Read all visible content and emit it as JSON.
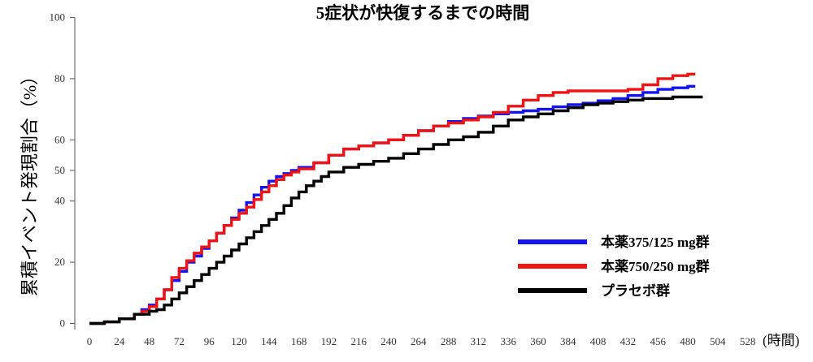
{
  "chart_data": {
    "type": "line",
    "title": "5症状が快復するまでの時間",
    "ylabel": "累積イベント発現割合（%）",
    "xlabel": "(時間)",
    "xlim": [
      0,
      540
    ],
    "ylim": [
      -2,
      102
    ],
    "x_ticks": [
      0,
      24,
      48,
      72,
      96,
      120,
      144,
      168,
      192,
      216,
      240,
      264,
      288,
      312,
      336,
      360,
      384,
      408,
      432,
      456,
      480,
      504,
      528
    ],
    "y_ticks": [
      0,
      20,
      40,
      50,
      60,
      80,
      100
    ],
    "grid": false,
    "legend_position": "bottom-right",
    "series": [
      {
        "name": "本薬375/125 mg群",
        "color": "#1414ee",
        "points": [
          [
            0,
            0
          ],
          [
            12,
            0.5
          ],
          [
            24,
            1.5
          ],
          [
            36,
            3
          ],
          [
            42,
            4.5
          ],
          [
            48,
            6
          ],
          [
            54,
            8
          ],
          [
            60,
            11
          ],
          [
            66,
            14
          ],
          [
            72,
            17
          ],
          [
            78,
            20
          ],
          [
            84,
            22
          ],
          [
            90,
            24.5
          ],
          [
            96,
            27
          ],
          [
            102,
            29.5
          ],
          [
            108,
            32
          ],
          [
            114,
            34.5
          ],
          [
            120,
            37
          ],
          [
            126,
            39.5
          ],
          [
            132,
            42
          ],
          [
            138,
            44.5
          ],
          [
            144,
            46.5
          ],
          [
            150,
            48
          ],
          [
            156,
            49
          ],
          [
            162,
            50
          ],
          [
            168,
            51
          ],
          [
            180,
            52.5
          ],
          [
            192,
            55
          ],
          [
            204,
            57
          ],
          [
            216,
            58
          ],
          [
            228,
            59
          ],
          [
            240,
            60
          ],
          [
            252,
            61.5
          ],
          [
            264,
            63
          ],
          [
            276,
            64.5
          ],
          [
            288,
            66
          ],
          [
            300,
            67
          ],
          [
            312,
            67.8
          ],
          [
            324,
            68.5
          ],
          [
            336,
            69
          ],
          [
            348,
            69.5
          ],
          [
            360,
            70
          ],
          [
            372,
            70.8
          ],
          [
            384,
            71.5
          ],
          [
            396,
            72
          ],
          [
            408,
            72.8
          ],
          [
            420,
            73.5
          ],
          [
            432,
            74.5
          ],
          [
            444,
            75.5
          ],
          [
            456,
            76.5
          ],
          [
            468,
            77
          ],
          [
            480,
            77.5
          ],
          [
            486,
            77.5
          ]
        ]
      },
      {
        "name": "本薬750/250 mg群",
        "color": "#ee1414",
        "points": [
          [
            0,
            0
          ],
          [
            12,
            0.5
          ],
          [
            24,
            1.5
          ],
          [
            36,
            3
          ],
          [
            42,
            4
          ],
          [
            48,
            5.5
          ],
          [
            54,
            8
          ],
          [
            60,
            11
          ],
          [
            66,
            15
          ],
          [
            72,
            18
          ],
          [
            78,
            20.5
          ],
          [
            84,
            23
          ],
          [
            90,
            25
          ],
          [
            96,
            27
          ],
          [
            102,
            29.5
          ],
          [
            108,
            32
          ],
          [
            114,
            34
          ],
          [
            120,
            36
          ],
          [
            126,
            38
          ],
          [
            132,
            40.5
          ],
          [
            138,
            43
          ],
          [
            144,
            45
          ],
          [
            150,
            47
          ],
          [
            156,
            48.5
          ],
          [
            162,
            49.5
          ],
          [
            168,
            50.5
          ],
          [
            180,
            52.5
          ],
          [
            192,
            55
          ],
          [
            204,
            57
          ],
          [
            216,
            58
          ],
          [
            228,
            59
          ],
          [
            240,
            60
          ],
          [
            252,
            61.5
          ],
          [
            264,
            63
          ],
          [
            276,
            64.5
          ],
          [
            288,
            65.5
          ],
          [
            300,
            66.5
          ],
          [
            312,
            67.5
          ],
          [
            324,
            69
          ],
          [
            336,
            71
          ],
          [
            348,
            73
          ],
          [
            360,
            74.5
          ],
          [
            372,
            75.5
          ],
          [
            384,
            76
          ],
          [
            396,
            76
          ],
          [
            408,
            76
          ],
          [
            420,
            76
          ],
          [
            432,
            76.5
          ],
          [
            444,
            78
          ],
          [
            456,
            80
          ],
          [
            468,
            81
          ],
          [
            480,
            81.5
          ],
          [
            486,
            81.5
          ]
        ]
      },
      {
        "name": "プラセボ群",
        "color": "#000000",
        "points": [
          [
            0,
            0
          ],
          [
            12,
            0.5
          ],
          [
            24,
            1.5
          ],
          [
            36,
            3
          ],
          [
            48,
            4
          ],
          [
            54,
            4.5
          ],
          [
            60,
            6
          ],
          [
            66,
            8
          ],
          [
            72,
            10
          ],
          [
            78,
            12
          ],
          [
            84,
            14
          ],
          [
            90,
            16
          ],
          [
            96,
            18
          ],
          [
            102,
            20
          ],
          [
            108,
            22
          ],
          [
            114,
            24
          ],
          [
            120,
            26
          ],
          [
            126,
            28
          ],
          [
            132,
            30
          ],
          [
            138,
            32
          ],
          [
            144,
            34
          ],
          [
            150,
            36
          ],
          [
            156,
            38.5
          ],
          [
            162,
            41
          ],
          [
            168,
            43
          ],
          [
            174,
            45
          ],
          [
            180,
            46.5
          ],
          [
            186,
            48
          ],
          [
            192,
            49.5
          ],
          [
            204,
            51
          ],
          [
            216,
            52
          ],
          [
            228,
            53
          ],
          [
            240,
            54
          ],
          [
            252,
            55.5
          ],
          [
            264,
            57
          ],
          [
            276,
            58.5
          ],
          [
            288,
            60
          ],
          [
            300,
            61
          ],
          [
            312,
            62.5
          ],
          [
            324,
            64.5
          ],
          [
            336,
            66.5
          ],
          [
            348,
            67.5
          ],
          [
            360,
            68.5
          ],
          [
            372,
            69.5
          ],
          [
            384,
            70.5
          ],
          [
            396,
            71.5
          ],
          [
            408,
            72
          ],
          [
            420,
            72.5
          ],
          [
            432,
            73
          ],
          [
            444,
            73.5
          ],
          [
            456,
            73.5
          ],
          [
            468,
            74
          ],
          [
            480,
            74
          ],
          [
            492,
            74
          ]
        ]
      }
    ]
  }
}
